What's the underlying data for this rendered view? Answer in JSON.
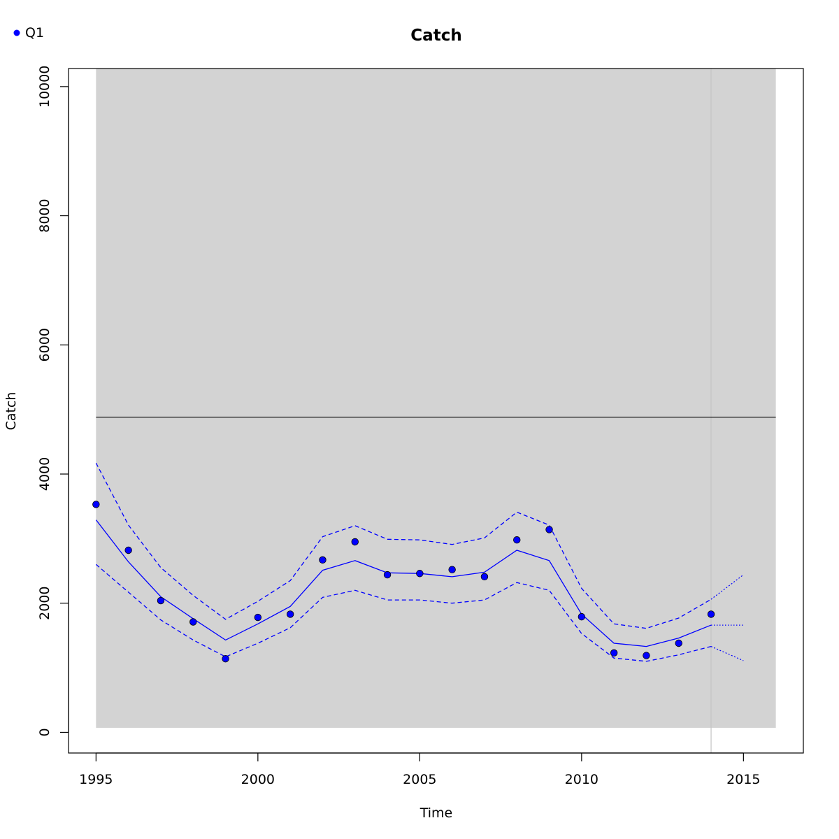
{
  "chart_data": {
    "type": "line",
    "title": "Catch",
    "xlabel": "Time",
    "ylabel": "Catch",
    "xlim": [
      1994.15,
      2016.85
    ],
    "ylim": [
      -320,
      10280
    ],
    "x_ticks": [
      1995,
      2000,
      2005,
      2010,
      2015
    ],
    "y_ticks": [
      0,
      2000,
      4000,
      6000,
      8000,
      10000
    ],
    "grid": false,
    "legend": {
      "position": "top-left",
      "entries": [
        "Q1"
      ]
    },
    "colors": {
      "series": "#0000ff",
      "band": "#d3d3d3",
      "reference": "#000000",
      "vline": "#c4c4c4"
    },
    "shaded_band": {
      "x_from": 1995,
      "x_to": 2016,
      "y_from": 70,
      "y_to": 10280
    },
    "reference_line": {
      "y": 4880,
      "x_from": 1995,
      "x_to": 2016
    },
    "vertical_line": {
      "x": 2014
    },
    "series": [
      {
        "name": "Q1",
        "kind": "points",
        "x": [
          1995,
          1996,
          1997,
          1998,
          1999,
          2000,
          2001,
          2002,
          2003,
          2004,
          2005,
          2006,
          2007,
          2008,
          2009,
          2010,
          2011,
          2012,
          2013,
          2014
        ],
        "values": [
          3530,
          2820,
          2040,
          1710,
          1140,
          1780,
          1830,
          2670,
          2950,
          2440,
          2460,
          2520,
          2410,
          2980,
          3140,
          1790,
          1230,
          1190,
          1380,
          1830
        ]
      },
      {
        "kind": "fit",
        "x": [
          1995,
          1996,
          1997,
          1998,
          1999,
          2000,
          2001,
          2002,
          2003,
          2004,
          2005,
          2006,
          2007,
          2008,
          2009,
          2010,
          2011,
          2012,
          2013,
          2014
        ],
        "values": [
          3290,
          2640,
          2100,
          1760,
          1430,
          1680,
          1950,
          2510,
          2660,
          2470,
          2460,
          2410,
          2480,
          2820,
          2660,
          1830,
          1380,
          1330,
          1460,
          1660
        ]
      },
      {
        "kind": "upper",
        "x": [
          1995,
          1996,
          1997,
          1998,
          1999,
          2000,
          2001,
          2002,
          2003,
          2004,
          2005,
          2006,
          2007,
          2008,
          2009,
          2010,
          2011,
          2012,
          2013,
          2014
        ],
        "values": [
          4170,
          3210,
          2550,
          2120,
          1750,
          2030,
          2350,
          3030,
          3200,
          2990,
          2980,
          2910,
          3010,
          3410,
          3210,
          2230,
          1680,
          1610,
          1770,
          2060
        ]
      },
      {
        "kind": "lower",
        "x": [
          1995,
          1996,
          1997,
          1998,
          1999,
          2000,
          2001,
          2002,
          2003,
          2004,
          2005,
          2006,
          2007,
          2008,
          2009,
          2010,
          2011,
          2012,
          2013,
          2014
        ],
        "values": [
          2600,
          2170,
          1740,
          1430,
          1170,
          1380,
          1620,
          2090,
          2200,
          2050,
          2050,
          2000,
          2050,
          2320,
          2200,
          1530,
          1150,
          1100,
          1200,
          1330
        ]
      },
      {
        "kind": "forecast",
        "x": [
          2014,
          2015
        ],
        "values": [
          1660,
          1660
        ]
      },
      {
        "kind": "forecast-upper",
        "x": [
          2014,
          2015
        ],
        "values": [
          2060,
          2440
        ]
      },
      {
        "kind": "forecast-lower",
        "x": [
          2014,
          2015
        ],
        "values": [
          1330,
          1110
        ]
      }
    ]
  }
}
